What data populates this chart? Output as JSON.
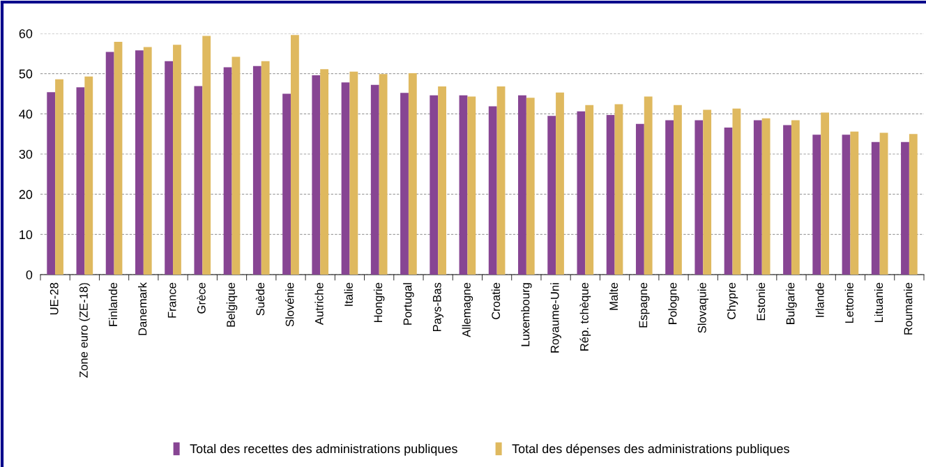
{
  "chart_data": {
    "type": "bar",
    "categories": [
      "UE-28",
      "Zone euro (ZE-18)",
      "Finlande",
      "Danemark",
      "France",
      "Grèce",
      "Belgique",
      "Suède",
      "Slovénie",
      "Autriche",
      "Italie",
      "Hongrie",
      "Portugal",
      "Pays-Bas",
      "Allemagne",
      "Croatie",
      "Luxembourg",
      "Royaume-Uni",
      "Rép. tchèque",
      "Malte",
      "Espagne",
      "Pologne",
      "Slovaquie",
      "Chypre",
      "Estonie",
      "Bulgarie",
      "Irlande",
      "Lettonie",
      "Lituanie",
      "Roumanie"
    ],
    "series": [
      {
        "name": "Total des recettes des administrations publiques",
        "color": "#874593",
        "values": [
          45.4,
          46.6,
          55.4,
          55.8,
          53.1,
          46.9,
          51.6,
          51.9,
          45.0,
          49.6,
          47.8,
          47.2,
          45.2,
          44.6,
          44.6,
          41.9,
          44.6,
          39.5,
          40.6,
          39.7,
          37.5,
          38.4,
          38.4,
          36.6,
          38.4,
          37.2,
          34.8,
          34.8,
          33.0,
          33.0
        ]
      },
      {
        "name": "Total des dépenses des administrations publiques",
        "color": "#dfb95f",
        "values": [
          48.6,
          49.3,
          57.9,
          56.6,
          57.2,
          59.4,
          54.2,
          53.1,
          59.6,
          51.1,
          50.5,
          49.9,
          50.1,
          46.8,
          44.3,
          46.8,
          44.0,
          45.3,
          42.2,
          42.4,
          44.3,
          42.2,
          41.0,
          41.3,
          38.9,
          38.4,
          40.3,
          35.6,
          35.3,
          35.0
        ]
      }
    ],
    "ylim": [
      0,
      60
    ],
    "yticks": [
      0,
      10,
      20,
      30,
      40,
      50,
      60
    ],
    "grid": "y",
    "legend": "bottom"
  }
}
